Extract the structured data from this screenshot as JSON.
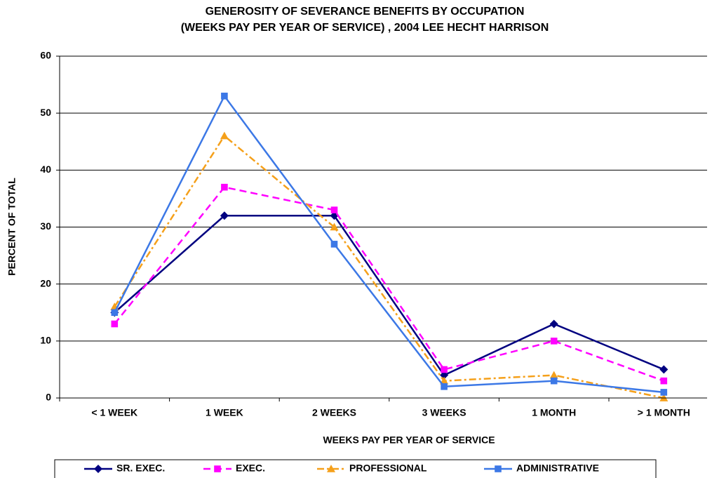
{
  "chart_data": {
    "type": "line",
    "title": [
      "GENEROSITY OF SEVERANCE BENEFITS BY OCCUPATION",
      "(WEEKS PAY PER YEAR OF SERVICE) , 2004  LEE HECHT HARRISON"
    ],
    "x_label": "WEEKS PAY PER YEAR OF SERVICE",
    "y_label": "PERCENT OF TOTAL",
    "categories": [
      "< 1 WEEK",
      "1 WEEK",
      "2 WEEKS",
      "3 WEEKS",
      "1 MONTH",
      "> 1 MONTH"
    ],
    "series": [
      {
        "name": "SR. EXEC.",
        "color": "#000080",
        "marker": "diamond",
        "dash": "solid",
        "values": [
          15,
          32,
          32,
          4,
          13,
          5
        ]
      },
      {
        "name": "EXEC.",
        "color": "#ff00ff",
        "marker": "square",
        "dash": "dashed",
        "values": [
          13,
          37,
          33,
          5,
          10,
          3
        ]
      },
      {
        "name": "PROFESSIONAL",
        "color": "#f5a01a",
        "marker": "triangle",
        "dash": "dashdot",
        "values": [
          16,
          46,
          30,
          3,
          4,
          0
        ]
      },
      {
        "name": "ADMINISTRATIVE",
        "color": "#3c78e6",
        "marker": "square",
        "dash": "solid",
        "values": [
          15,
          53,
          27,
          2,
          3,
          1
        ]
      }
    ],
    "ylim": [
      0,
      60
    ],
    "yticks": [
      0,
      10,
      20,
      30,
      40,
      50,
      60
    ],
    "grid": true,
    "legend": "bottom"
  }
}
